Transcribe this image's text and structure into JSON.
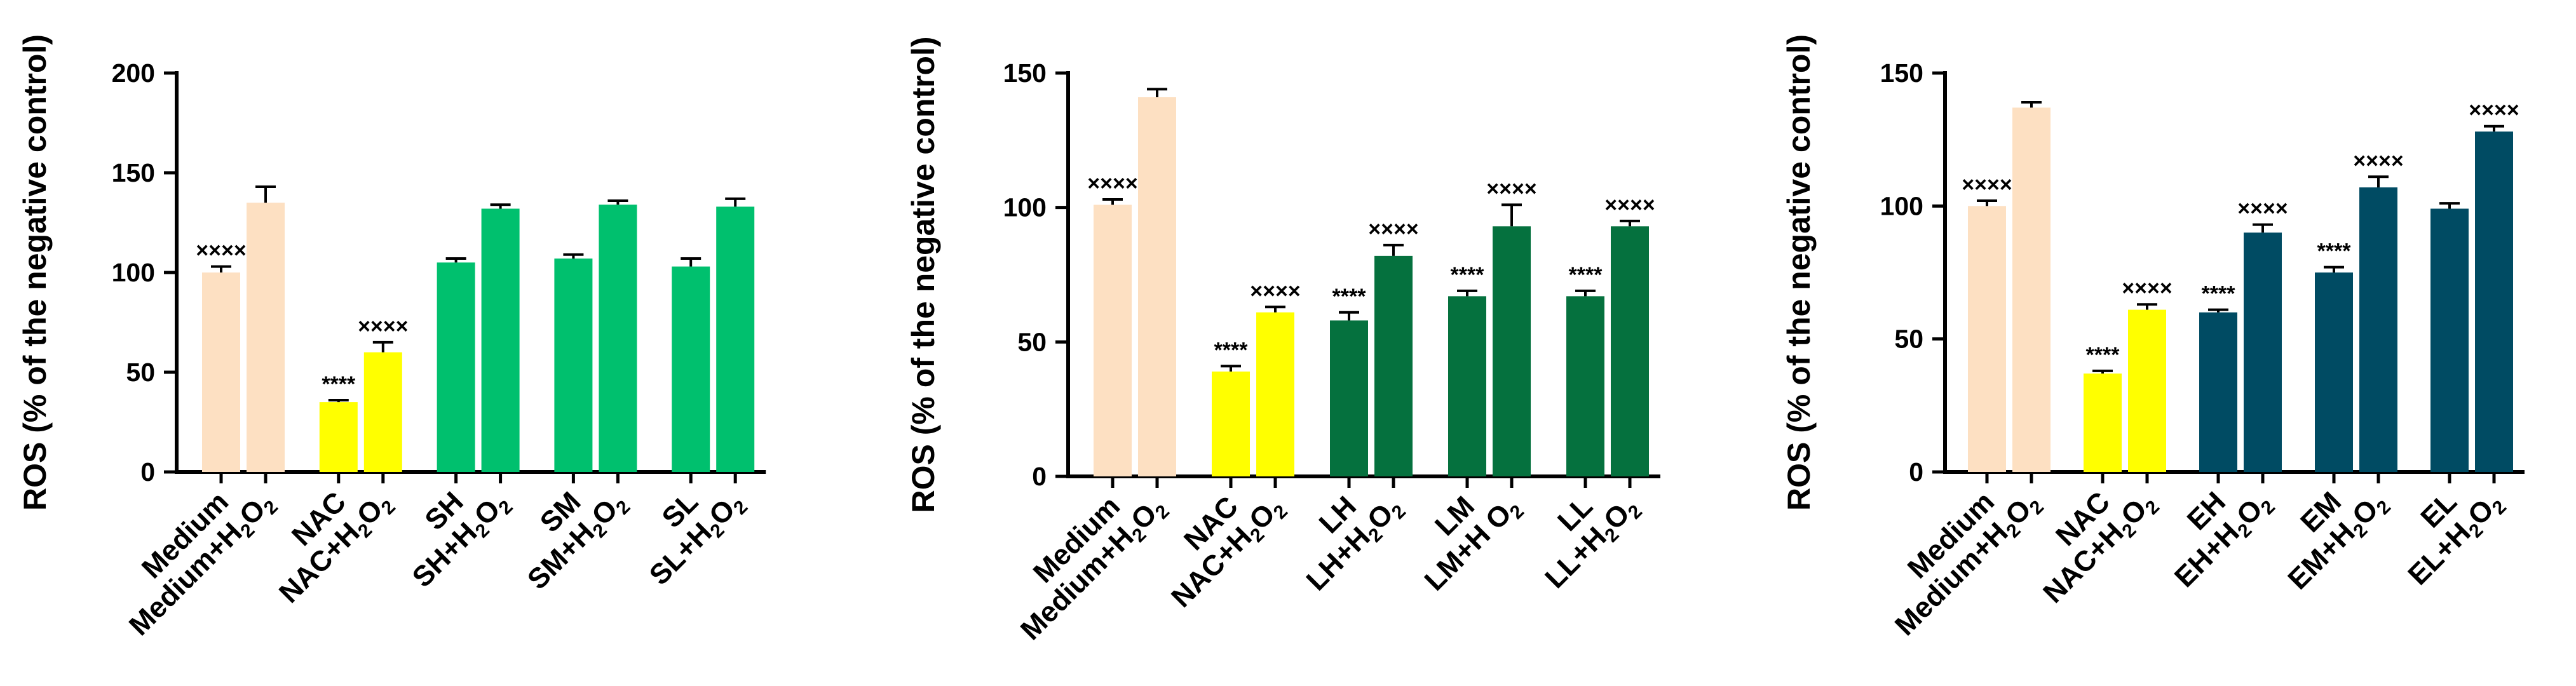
{
  "chart_data": [
    {
      "type": "bar",
      "ylabel": "ROS (% of the negative control)",
      "ylim": [
        0,
        200
      ],
      "yticks": [
        "0",
        "50",
        "100",
        "150",
        "200"
      ],
      "categories": [
        {
          "base": "Medium",
          "sub": "",
          "tail": ""
        },
        {
          "base": "Medium+H",
          "sub": "2",
          "tail": "O",
          "sub2": "2"
        },
        {
          "base": "NAC",
          "sub": "",
          "tail": ""
        },
        {
          "base": "NAC+H",
          "sub": "2",
          "tail": "O",
          "sub2": "2"
        },
        {
          "base": "SH",
          "sub": "",
          "tail": ""
        },
        {
          "base": "SH+H",
          "sub": "2",
          "tail": "O",
          "sub2": "2"
        },
        {
          "base": "SM",
          "sub": "",
          "tail": ""
        },
        {
          "base": "SM+H",
          "sub": "2",
          "tail": "O",
          "sub2": "2"
        },
        {
          "base": "SL",
          "sub": "",
          "tail": ""
        },
        {
          "base": "SL+H",
          "sub": "2",
          "tail": "O",
          "sub2": "2"
        }
      ],
      "values": [
        100,
        135,
        35,
        60,
        105,
        132,
        107,
        134,
        103,
        133
      ],
      "errors": [
        3,
        8,
        1,
        5,
        2,
        2,
        2,
        2,
        4,
        4
      ],
      "significance": [
        "××××",
        "",
        "****",
        "××××",
        "",
        "",
        "",
        "",
        "",
        ""
      ],
      "colors": [
        "#fde0c2",
        "#fde0c2",
        "#ffff00",
        "#ffff00",
        "#00c06e",
        "#00c06e",
        "#00c06e",
        "#00c06e",
        "#00c06e",
        "#00c06e"
      ]
    },
    {
      "type": "bar",
      "ylabel": "ROS (% of the negative control)",
      "ylim": [
        0,
        150
      ],
      "yticks": [
        "0",
        "50",
        "100",
        "150"
      ],
      "categories": [
        {
          "base": "Medium",
          "sub": "",
          "tail": ""
        },
        {
          "base": "Medium+H",
          "sub": "2",
          "tail": "O",
          "sub2": "2"
        },
        {
          "base": "NAC",
          "sub": "",
          "tail": ""
        },
        {
          "base": "NAC+H",
          "sub": "2",
          "tail": "O",
          "sub2": "2"
        },
        {
          "base": "LH",
          "sub": "",
          "tail": ""
        },
        {
          "base": "LH+H",
          "sub": "2",
          "tail": "O",
          "sub2": "2"
        },
        {
          "base": "LM",
          "sub": "",
          "tail": ""
        },
        {
          "base": "LM+H",
          "sub": "",
          "tail": "O",
          "sub2": "2"
        },
        {
          "base": "LL",
          "sub": "",
          "tail": ""
        },
        {
          "base": "LL+H",
          "sub": "2",
          "tail": "O",
          "sub2": "2"
        }
      ],
      "values": [
        101,
        141,
        39,
        61,
        58,
        82,
        67,
        93,
        67,
        93
      ],
      "errors": [
        2,
        3,
        2,
        2,
        3,
        4,
        2,
        8,
        2,
        2
      ],
      "significance": [
        "××××",
        "",
        "****",
        "××××",
        "****",
        "××××",
        "****",
        "××××",
        "****",
        "××××"
      ],
      "colors": [
        "#fde0c2",
        "#fde0c2",
        "#ffff00",
        "#ffff00",
        "#05713e",
        "#05713e",
        "#05713e",
        "#05713e",
        "#05713e",
        "#05713e"
      ]
    },
    {
      "type": "bar",
      "ylabel": "ROS (% of the negative control)",
      "ylim": [
        0,
        150
      ],
      "yticks": [
        "0",
        "50",
        "100",
        "150"
      ],
      "categories": [
        {
          "base": "Medium",
          "sub": "",
          "tail": ""
        },
        {
          "base": "Medium+H",
          "sub": "2",
          "tail": "O",
          "sub2": "2"
        },
        {
          "base": "NAC",
          "sub": "",
          "tail": ""
        },
        {
          "base": "NAC+H",
          "sub": "2",
          "tail": "O",
          "sub2": "2"
        },
        {
          "base": "EH",
          "sub": "",
          "tail": ""
        },
        {
          "base": "EH+H",
          "sub": "2",
          "tail": "O",
          "sub2": "2"
        },
        {
          "base": "EM",
          "sub": "",
          "tail": ""
        },
        {
          "base": "EM+H",
          "sub": "2",
          "tail": "O",
          "sub2": "2"
        },
        {
          "base": "EL",
          "sub": "",
          "tail": ""
        },
        {
          "base": "EL+H",
          "sub": "2",
          "tail": "O",
          "sub2": "2"
        }
      ],
      "values": [
        100,
        137,
        37,
        61,
        60,
        90,
        75,
        107,
        99,
        128
      ],
      "errors": [
        2,
        2,
        1,
        2,
        1,
        3,
        2,
        4,
        2,
        2
      ],
      "significance": [
        "××××",
        "",
        "****",
        "××××",
        "****",
        "××××",
        "****",
        "××××",
        "",
        "××××"
      ],
      "colors": [
        "#fde0c2",
        "#fde0c2",
        "#ffff00",
        "#ffff00",
        "#004b63",
        "#004b63",
        "#004b63",
        "#004b63",
        "#004b63",
        "#004b63"
      ]
    }
  ]
}
